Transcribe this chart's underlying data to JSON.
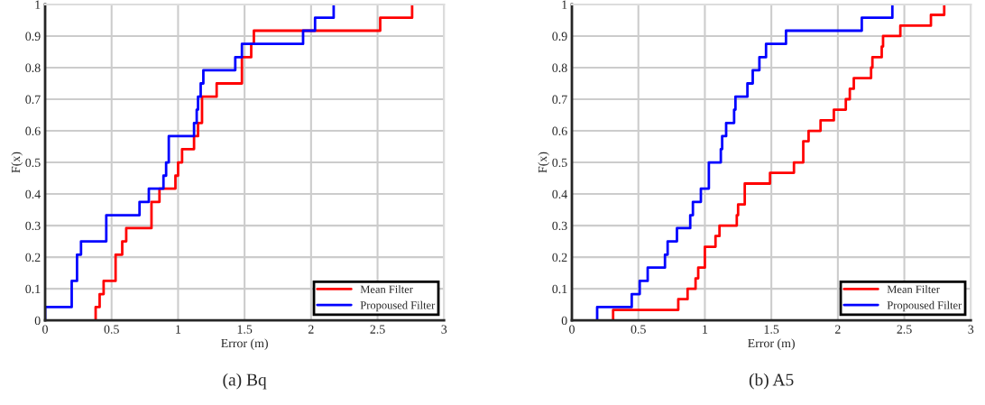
{
  "chart_data": [
    {
      "type": "step",
      "title": "(a) Bq",
      "xlabel": "Error (m)",
      "ylabel": "F(x)",
      "xlim": [
        0,
        3
      ],
      "ylim": [
        0,
        1
      ],
      "xticks": [
        0,
        0.5,
        1,
        1.5,
        2,
        2.5,
        3
      ],
      "yticks": [
        0,
        0.1,
        0.2,
        0.3,
        0.4,
        0.5,
        0.6,
        0.7,
        0.8,
        0.9,
        1
      ],
      "grid": true,
      "legend": "bottom right",
      "line_style": "solid",
      "series": [
        {
          "name": "Mean Filter",
          "color": "#ff0000",
          "x": [
            0.38,
            0.38,
            0.41,
            0.44,
            0.53,
            0.53,
            0.58,
            0.61,
            0.8,
            0.8,
            0.86,
            0.98,
            1.0,
            1.03,
            1.12,
            1.15,
            1.18,
            1.18,
            1.29,
            1.48,
            1.48,
            1.55,
            1.57,
            2.52,
            2.76
          ],
          "values": [
            0,
            0.042,
            0.083,
            0.125,
            0.167,
            0.208,
            0.25,
            0.292,
            0.333,
            0.375,
            0.417,
            0.458,
            0.5,
            0.542,
            0.583,
            0.625,
            0.667,
            0.708,
            0.75,
            0.792,
            0.833,
            0.875,
            0.917,
            0.958,
            1.0
          ]
        },
        {
          "name": "Propoused Filter",
          "color": "#0000ff",
          "x": [
            0,
            0,
            0.2,
            0.24,
            0.27,
            0.46,
            0.46,
            0.71,
            0.78,
            0.89,
            0.91,
            0.93,
            0.93,
            1.12,
            1.14,
            1.15,
            1.17,
            1.19,
            1.43,
            1.48,
            1.94,
            2.03,
            2.17
          ],
          "values": [
            0,
            0.042,
            0.125,
            0.208,
            0.25,
            0.292,
            0.333,
            0.375,
            0.417,
            0.458,
            0.5,
            0.542,
            0.583,
            0.625,
            0.667,
            0.708,
            0.75,
            0.792,
            0.833,
            0.875,
            0.917,
            0.958,
            1.0
          ]
        }
      ]
    },
    {
      "type": "step",
      "title": "(b) A5",
      "xlabel": "Error (m)",
      "ylabel": "F(x)",
      "xlim": [
        0,
        3
      ],
      "ylim": [
        0,
        1
      ],
      "xticks": [
        0,
        0.5,
        1,
        1.5,
        2,
        2.5,
        3
      ],
      "yticks": [
        0,
        0.1,
        0.2,
        0.3,
        0.4,
        0.5,
        0.6,
        0.7,
        0.8,
        0.9,
        1
      ],
      "grid": true,
      "legend": "bottom right",
      "line_style": "solid",
      "series": [
        {
          "name": "Mean Filter",
          "color": "#ff0000",
          "x": [
            0.31,
            0.31,
            0.8,
            0.87,
            0.93,
            0.95,
            1.0,
            1.0,
            1.08,
            1.11,
            1.24,
            1.25,
            1.3,
            1.3,
            1.49,
            1.67,
            1.74,
            1.74,
            1.78,
            1.87,
            1.97,
            2.06,
            2.09,
            2.12,
            2.25,
            2.26,
            2.33,
            2.34,
            2.47,
            2.7,
            2.8
          ],
          "values": [
            0,
            0.033,
            0.067,
            0.1,
            0.133,
            0.167,
            0.2,
            0.233,
            0.267,
            0.3,
            0.333,
            0.367,
            0.4,
            0.433,
            0.467,
            0.5,
            0.533,
            0.567,
            0.6,
            0.633,
            0.667,
            0.7,
            0.733,
            0.767,
            0.8,
            0.833,
            0.867,
            0.9,
            0.933,
            0.967,
            1.0
          ]
        },
        {
          "name": "Propoused Filter",
          "color": "#0000ff",
          "x": [
            0.19,
            0.19,
            0.45,
            0.51,
            0.57,
            0.7,
            0.72,
            0.79,
            0.89,
            0.91,
            0.97,
            1.03,
            1.03,
            1.12,
            1.13,
            1.16,
            1.22,
            1.23,
            1.32,
            1.36,
            1.41,
            1.46,
            1.61,
            2.18,
            2.41
          ],
          "values": [
            0,
            0.042,
            0.083,
            0.125,
            0.167,
            0.208,
            0.25,
            0.292,
            0.333,
            0.375,
            0.417,
            0.458,
            0.5,
            0.542,
            0.583,
            0.625,
            0.667,
            0.708,
            0.75,
            0.792,
            0.833,
            0.875,
            0.917,
            0.958,
            1.0
          ]
        }
      ]
    }
  ]
}
